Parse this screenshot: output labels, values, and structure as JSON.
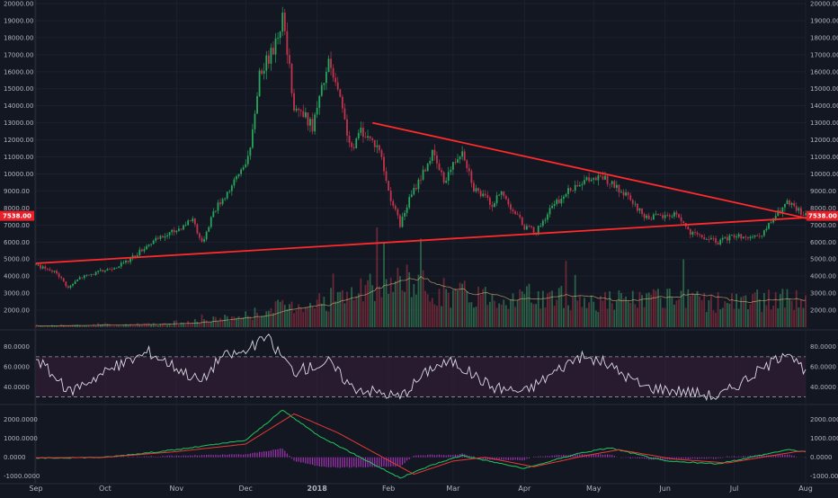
{
  "colors": {
    "background": "#131722",
    "up": "#26a65b",
    "down": "#c2334c",
    "trendline": "#ff2a2a",
    "price_badge": "#e8202a",
    "rsi_line": "#d9d9e3",
    "rsi_band": "#3b1f3a",
    "macd_line": "#22c55e",
    "signal_line": "#e53935",
    "histogram": "#b838c9",
    "volume_ma": "#d8b47a",
    "text": "#b2b5be"
  },
  "chart_data": [
    {
      "type": "candlestick",
      "title": "",
      "price_axis": {
        "min": 1000,
        "max": 20000,
        "ticks": [
          "2000.00",
          "3000.00",
          "4000.00",
          "5000.00",
          "6000.00",
          "7000.00",
          "8000.00",
          "9000.00",
          "10000.00",
          "11000.00",
          "12000.00",
          "13000.00",
          "14000.00",
          "15000.00",
          "16000.00",
          "17000.00",
          "18000.00",
          "19000.00",
          "20000.00"
        ],
        "tick_values": [
          2000,
          3000,
          4000,
          5000,
          6000,
          7000,
          8000,
          9000,
          10000,
          11000,
          12000,
          13000,
          14000,
          15000,
          16000,
          17000,
          18000,
          19000,
          20000
        ]
      },
      "time_axis": {
        "start": "2017-09-01",
        "end": "2018-08-01",
        "labels": [
          {
            "date": "2017-09-01",
            "label": "Sep"
          },
          {
            "date": "2017-10-01",
            "label": "Oct"
          },
          {
            "date": "2017-11-01",
            "label": "Nov"
          },
          {
            "date": "2017-12-01",
            "label": "Dec"
          },
          {
            "date": "2018-01-01",
            "label": "2018",
            "bold": true
          },
          {
            "date": "2018-02-01",
            "label": "Feb"
          },
          {
            "date": "2018-03-01",
            "label": "Mar"
          },
          {
            "date": "2018-04-01",
            "label": "Apr"
          },
          {
            "date": "2018-05-01",
            "label": "May"
          },
          {
            "date": "2018-06-01",
            "label": "Jun"
          },
          {
            "date": "2018-07-01",
            "label": "Jul"
          },
          {
            "date": "2018-08-01",
            "label": "Aug"
          }
        ]
      },
      "price_anchors": [
        [
          "2017-09-01",
          4700
        ],
        [
          "2017-09-05",
          4400
        ],
        [
          "2017-09-10",
          4200
        ],
        [
          "2017-09-15",
          3300
        ],
        [
          "2017-09-20",
          3900
        ],
        [
          "2017-09-30",
          4300
        ],
        [
          "2017-10-10",
          4800
        ],
        [
          "2017-10-20",
          5900
        ],
        [
          "2017-11-01",
          6700
        ],
        [
          "2017-11-08",
          7400
        ],
        [
          "2017-11-12",
          5900
        ],
        [
          "2017-11-17",
          7800
        ],
        [
          "2017-11-26",
          9500
        ],
        [
          "2017-12-03",
          11300
        ],
        [
          "2017-12-07",
          16000
        ],
        [
          "2017-12-12",
          17000
        ],
        [
          "2017-12-17",
          19200
        ],
        [
          "2017-12-22",
          14000
        ],
        [
          "2017-12-24",
          13800
        ],
        [
          "2017-12-30",
          12800
        ],
        [
          "2018-01-06",
          16500
        ],
        [
          "2018-01-10",
          14800
        ],
        [
          "2018-01-16",
          11300
        ],
        [
          "2018-01-20",
          12600
        ],
        [
          "2018-01-28",
          11500
        ],
        [
          "2018-02-01",
          9000
        ],
        [
          "2018-02-06",
          7000
        ],
        [
          "2018-02-10",
          8500
        ],
        [
          "2018-02-20",
          11200
        ],
        [
          "2018-02-25",
          9600
        ],
        [
          "2018-03-05",
          11500
        ],
        [
          "2018-03-10",
          9200
        ],
        [
          "2018-03-18",
          8200
        ],
        [
          "2018-03-22",
          8900
        ],
        [
          "2018-04-01",
          6900
        ],
        [
          "2018-04-06",
          6600
        ],
        [
          "2018-04-12",
          7900
        ],
        [
          "2018-04-24",
          9500
        ],
        [
          "2018-05-05",
          9800
        ],
        [
          "2018-05-15",
          8700
        ],
        [
          "2018-05-23",
          7500
        ],
        [
          "2018-06-01",
          7500
        ],
        [
          "2018-06-06",
          7700
        ],
        [
          "2018-06-12",
          6500
        ],
        [
          "2018-06-24",
          6000
        ],
        [
          "2018-07-01",
          6400
        ],
        [
          "2018-07-12",
          6200
        ],
        [
          "2018-07-18",
          7400
        ],
        [
          "2018-07-24",
          8300
        ],
        [
          "2018-08-01",
          7538
        ]
      ],
      "trendlines": [
        {
          "name": "support",
          "from": [
            "2017-09-01",
            4750
          ],
          "to": [
            "2018-08-03",
            7450
          ]
        },
        {
          "name": "resistance",
          "from": [
            "2018-01-25",
            13000
          ],
          "to": [
            "2018-08-03",
            7350
          ]
        }
      ],
      "last_price": "7538.00",
      "last_value": 7538
    },
    {
      "type": "bar",
      "name": "volume",
      "note": "Volume histogram overlaid at the bottom of the price pane, shown against the same price scale",
      "volume_anchors": [
        [
          "2017-09-01",
          80
        ],
        [
          "2017-11-01",
          200
        ],
        [
          "2017-12-01",
          700
        ],
        [
          "2017-12-20",
          1300
        ],
        [
          "2018-01-10",
          1700
        ],
        [
          "2018-02-06",
          2700
        ],
        [
          "2018-03-01",
          2000
        ],
        [
          "2018-04-01",
          1800
        ],
        [
          "2018-05-01",
          1600
        ],
        [
          "2018-06-01",
          1600
        ],
        [
          "2018-07-01",
          1500
        ],
        [
          "2018-08-01",
          1700
        ]
      ]
    },
    {
      "type": "line",
      "name": "RSI",
      "axis": {
        "min": 25,
        "max": 95,
        "ticks": [
          "40.0000",
          "60.0000",
          "80.0000"
        ],
        "tick_values": [
          40,
          60,
          80
        ]
      },
      "upper_band": 70,
      "lower_band": 30,
      "rsi_anchors": [
        [
          "2017-09-01",
          70
        ],
        [
          "2017-09-15",
          35
        ],
        [
          "2017-10-01",
          55
        ],
        [
          "2017-10-20",
          75
        ],
        [
          "2017-11-12",
          45
        ],
        [
          "2017-11-20",
          70
        ],
        [
          "2017-12-01",
          75
        ],
        [
          "2017-12-10",
          90
        ],
        [
          "2017-12-22",
          55
        ],
        [
          "2018-01-06",
          65
        ],
        [
          "2018-01-16",
          40
        ],
        [
          "2018-02-06",
          30
        ],
        [
          "2018-02-20",
          60
        ],
        [
          "2018-03-01",
          65
        ],
        [
          "2018-03-18",
          40
        ],
        [
          "2018-04-01",
          35
        ],
        [
          "2018-04-24",
          70
        ],
        [
          "2018-05-05",
          65
        ],
        [
          "2018-05-23",
          40
        ],
        [
          "2018-06-12",
          35
        ],
        [
          "2018-06-24",
          30
        ],
        [
          "2018-07-18",
          65
        ],
        [
          "2018-07-24",
          78
        ],
        [
          "2018-08-01",
          52
        ]
      ]
    },
    {
      "type": "line",
      "name": "MACD",
      "axis": {
        "min": -1300,
        "max": 2700,
        "ticks": [
          "-1000.0000",
          "0.0000",
          "1000.0000",
          "2000.0000"
        ],
        "tick_values": [
          -1000,
          0,
          1000,
          2000
        ]
      },
      "macd_anchors": [
        [
          "2017-09-01",
          -50
        ],
        [
          "2017-10-01",
          0
        ],
        [
          "2017-11-01",
          400
        ],
        [
          "2017-12-01",
          900
        ],
        [
          "2017-12-17",
          2500
        ],
        [
          "2018-01-01",
          1200
        ],
        [
          "2018-01-15",
          300
        ],
        [
          "2018-02-06",
          -1100
        ],
        [
          "2018-02-20",
          -400
        ],
        [
          "2018-03-05",
          100
        ],
        [
          "2018-04-01",
          -600
        ],
        [
          "2018-04-24",
          200
        ],
        [
          "2018-05-08",
          500
        ],
        [
          "2018-06-01",
          -200
        ],
        [
          "2018-06-24",
          -350
        ],
        [
          "2018-07-24",
          400
        ],
        [
          "2018-08-01",
          300
        ]
      ],
      "signal_anchors": [
        [
          "2017-09-01",
          -30
        ],
        [
          "2017-10-01",
          0
        ],
        [
          "2017-11-01",
          300
        ],
        [
          "2017-12-01",
          700
        ],
        [
          "2017-12-22",
          2300
        ],
        [
          "2018-01-10",
          1300
        ],
        [
          "2018-01-25",
          300
        ],
        [
          "2018-02-12",
          -900
        ],
        [
          "2018-03-01",
          -200
        ],
        [
          "2018-03-15",
          0
        ],
        [
          "2018-04-05",
          -500
        ],
        [
          "2018-04-28",
          100
        ],
        [
          "2018-05-12",
          400
        ],
        [
          "2018-06-05",
          -100
        ],
        [
          "2018-06-28",
          -300
        ],
        [
          "2018-07-28",
          300
        ],
        [
          "2018-08-01",
          320
        ]
      ]
    }
  ]
}
